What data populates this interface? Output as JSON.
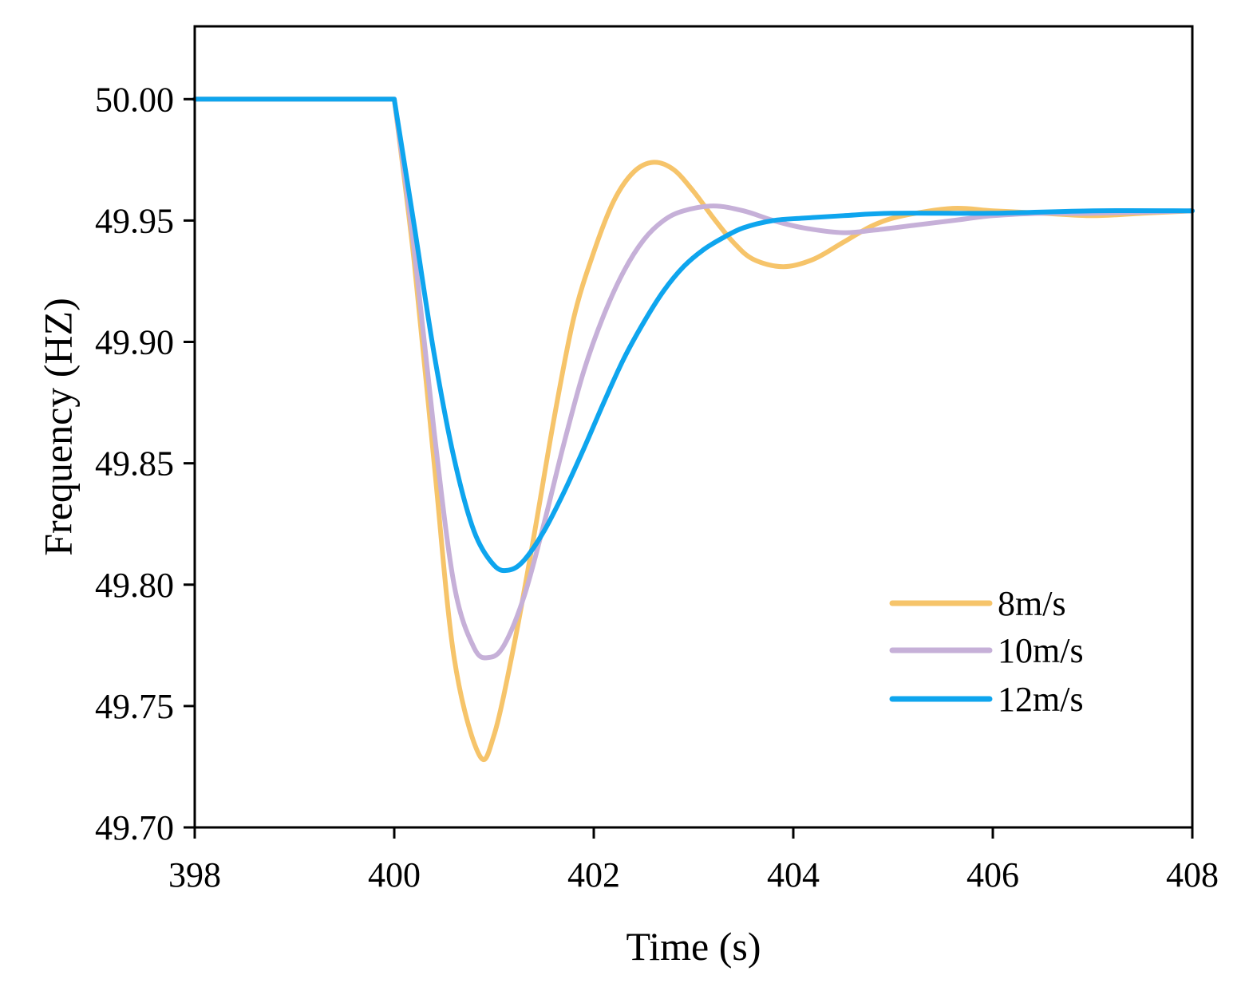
{
  "chart_data": {
    "type": "line",
    "title": "",
    "xlabel": "Time (s)",
    "ylabel": "Frequency (HZ)",
    "xlim": [
      398,
      408
    ],
    "ylim": [
      49.7,
      50.03
    ],
    "xticks": [
      398,
      400,
      402,
      404,
      406,
      408
    ],
    "xtick_labels": [
      "398",
      "400",
      "402",
      "404",
      "406",
      "408"
    ],
    "yticks": [
      49.7,
      49.75,
      49.8,
      49.85,
      49.9,
      49.95,
      50.0
    ],
    "ytick_labels": [
      "49.70",
      "49.75",
      "49.80",
      "49.85",
      "49.90",
      "49.95",
      "50.00"
    ],
    "grid": false,
    "legend_position": "lower-right",
    "series": [
      {
        "name": "8m/s",
        "color": "#F6C46A",
        "points": [
          [
            398.0,
            50.0
          ],
          [
            400.0,
            50.0
          ],
          [
            400.2,
            49.933
          ],
          [
            400.4,
            49.85
          ],
          [
            400.6,
            49.77
          ],
          [
            400.85,
            49.73
          ],
          [
            401.0,
            49.738
          ],
          [
            401.2,
            49.775
          ],
          [
            401.4,
            49.82
          ],
          [
            401.6,
            49.868
          ],
          [
            401.8,
            49.91
          ],
          [
            402.0,
            49.937
          ],
          [
            402.2,
            49.958
          ],
          [
            402.4,
            49.97
          ],
          [
            402.6,
            49.974
          ],
          [
            402.8,
            49.971
          ],
          [
            403.0,
            49.962
          ],
          [
            403.2,
            49.951
          ],
          [
            403.4,
            49.941
          ],
          [
            403.6,
            49.934
          ],
          [
            403.9,
            49.931
          ],
          [
            404.2,
            49.934
          ],
          [
            404.5,
            49.941
          ],
          [
            404.8,
            49.948
          ],
          [
            405.1,
            49.952
          ],
          [
            405.6,
            49.955
          ],
          [
            406.0,
            49.954
          ],
          [
            406.5,
            49.953
          ],
          [
            407.0,
            49.952
          ],
          [
            407.5,
            49.953
          ],
          [
            408.0,
            49.954
          ]
        ]
      },
      {
        "name": "10m/s",
        "color": "#C6B0D8",
        "points": [
          [
            398.0,
            50.0
          ],
          [
            400.0,
            50.0
          ],
          [
            400.2,
            49.938
          ],
          [
            400.4,
            49.863
          ],
          [
            400.6,
            49.8
          ],
          [
            400.8,
            49.774
          ],
          [
            400.95,
            49.77
          ],
          [
            401.1,
            49.775
          ],
          [
            401.3,
            49.795
          ],
          [
            401.5,
            49.825
          ],
          [
            401.7,
            49.858
          ],
          [
            401.9,
            49.888
          ],
          [
            402.1,
            49.911
          ],
          [
            402.3,
            49.929
          ],
          [
            402.5,
            49.942
          ],
          [
            402.7,
            49.95
          ],
          [
            402.9,
            49.954
          ],
          [
            403.2,
            49.956
          ],
          [
            403.5,
            49.954
          ],
          [
            403.8,
            49.95
          ],
          [
            404.1,
            49.947
          ],
          [
            404.5,
            49.945
          ],
          [
            404.8,
            49.946
          ],
          [
            405.2,
            49.948
          ],
          [
            405.6,
            49.95
          ],
          [
            406.0,
            49.952
          ],
          [
            406.5,
            49.953
          ],
          [
            407.0,
            49.953
          ],
          [
            408.0,
            49.954
          ]
        ]
      },
      {
        "name": "12m/s",
        "color": "#0EA5EE",
        "points": [
          [
            398.0,
            50.0
          ],
          [
            400.0,
            50.0
          ],
          [
            400.2,
            49.948
          ],
          [
            400.4,
            49.895
          ],
          [
            400.6,
            49.852
          ],
          [
            400.8,
            49.822
          ],
          [
            401.0,
            49.808
          ],
          [
            401.15,
            49.806
          ],
          [
            401.3,
            49.81
          ],
          [
            401.5,
            49.822
          ],
          [
            401.7,
            49.838
          ],
          [
            401.9,
            49.856
          ],
          [
            402.1,
            49.875
          ],
          [
            402.3,
            49.893
          ],
          [
            402.5,
            49.908
          ],
          [
            402.7,
            49.921
          ],
          [
            402.9,
            49.931
          ],
          [
            403.1,
            49.938
          ],
          [
            403.3,
            49.943
          ],
          [
            403.5,
            49.947
          ],
          [
            403.8,
            49.95
          ],
          [
            404.1,
            49.951
          ],
          [
            404.5,
            49.952
          ],
          [
            405.0,
            49.953
          ],
          [
            406.0,
            49.953
          ],
          [
            407.0,
            49.954
          ],
          [
            408.0,
            49.954
          ]
        ]
      }
    ]
  }
}
